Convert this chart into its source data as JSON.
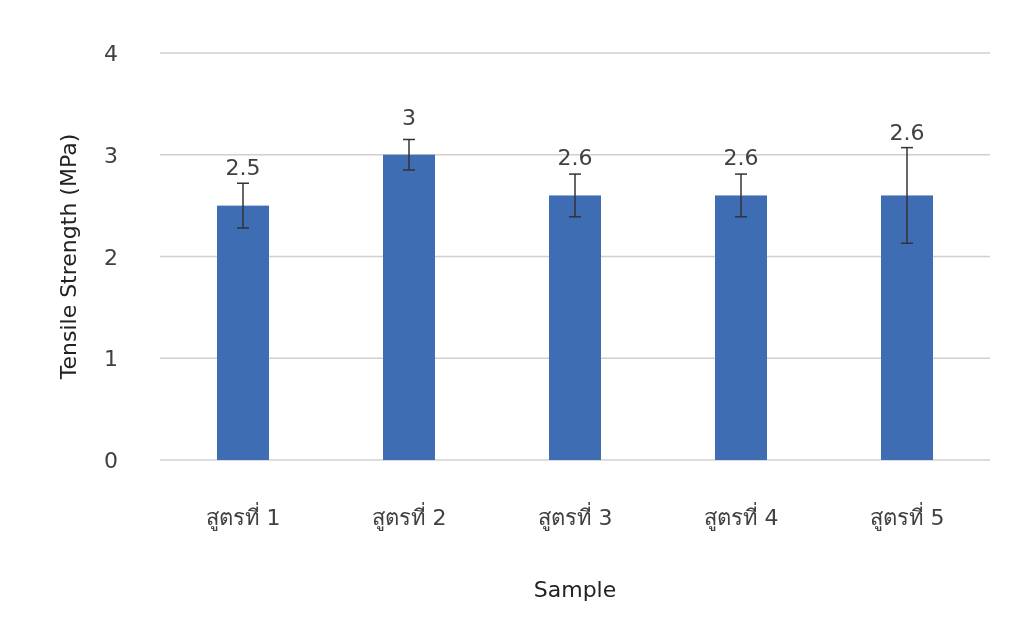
{
  "chart_data": {
    "type": "bar",
    "xlabel": "Sample",
    "ylabel": "Tensile Strength (MPa)",
    "categories": [
      "สูตรที่ 1",
      "สูตรที่ 2",
      "สูตรที่ 3",
      "สูตรที่ 4",
      "สูตรที่ 5"
    ],
    "series": [
      {
        "color": "#3f6db4",
        "values": [
          2.5,
          3,
          2.6,
          2.6,
          2.6
        ],
        "errors": [
          0.22,
          0.15,
          0.21,
          0.21,
          0.47
        ]
      }
    ],
    "ylim": [
      0,
      4
    ],
    "yticks": [
      0,
      1,
      2,
      3,
      4
    ],
    "grid": "y",
    "data_labels": true
  }
}
